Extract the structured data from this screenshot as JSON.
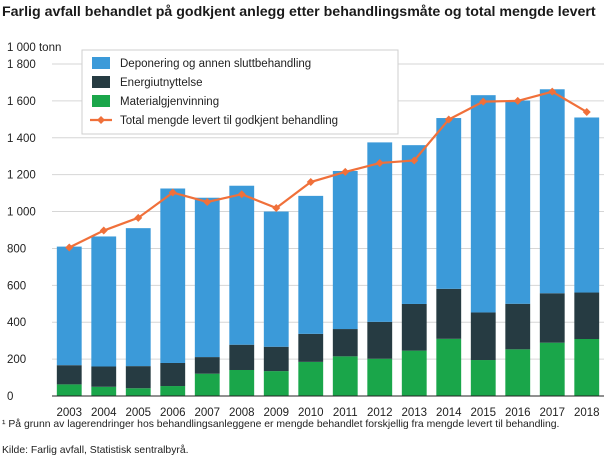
{
  "chart_data": {
    "type": "bar",
    "stacked": true,
    "title": "Farlig avfall behandlet på godkjent anlegg etter behandlingsmåte og total mengde levert",
    "ylabel": "1 000 tonn",
    "ylim": [
      0,
      1800
    ],
    "yticks": [
      0,
      200,
      400,
      600,
      800,
      1000,
      1200,
      1400,
      1600,
      1800
    ],
    "ytick_labels": [
      "0",
      "200",
      "400",
      "600",
      "800",
      "1 000",
      "1 200",
      "1 400",
      "1 600",
      "1 800"
    ],
    "grid": true,
    "legend_position": "top-left",
    "categories": [
      "2003",
      "2004",
      "2005",
      "2006",
      "2007",
      "2008",
      "2009",
      "2010",
      "2011",
      "2012",
      "2013",
      "2014",
      "2015",
      "2016",
      "2017",
      "2018"
    ],
    "series": [
      {
        "name": "Deponering og annen sluttbehandling",
        "color": "#3b9ad9",
        "kind": "bar",
        "values": [
          643,
          705,
          748,
          946,
          864,
          862,
          733,
          748,
          857,
          973,
          861,
          926,
          1178,
          1102,
          1106,
          949
        ]
      },
      {
        "name": "Energiutnyttelse",
        "color": "#263b42",
        "kind": "bar",
        "values": [
          104,
          110,
          120,
          125,
          90,
          137,
          132,
          152,
          148,
          200,
          253,
          271,
          258,
          247,
          268,
          252
        ]
      },
      {
        "name": "Materialgjenvinning",
        "color": "#1aa64a",
        "kind": "bar",
        "values": [
          63,
          50,
          42,
          54,
          121,
          141,
          135,
          185,
          215,
          202,
          246,
          310,
          195,
          253,
          289,
          309
        ]
      },
      {
        "name": "Total mengde levert til godkjent behandling",
        "color": "#f0703a",
        "kind": "line",
        "values": [
          805,
          897,
          966,
          1103,
          1052,
          1094,
          1019,
          1160,
          1215,
          1263,
          1277,
          1499,
          1596,
          1600,
          1650,
          1540
        ]
      }
    ]
  },
  "footnotes": {
    "note": "¹ På grunn av lagerendringer hos behandlingsanleggene er mengde behandlet forskjellig fra mengde levert til behandling.",
    "source": "Kilde: Farlig avfall, Statistisk sentralbyrå."
  }
}
